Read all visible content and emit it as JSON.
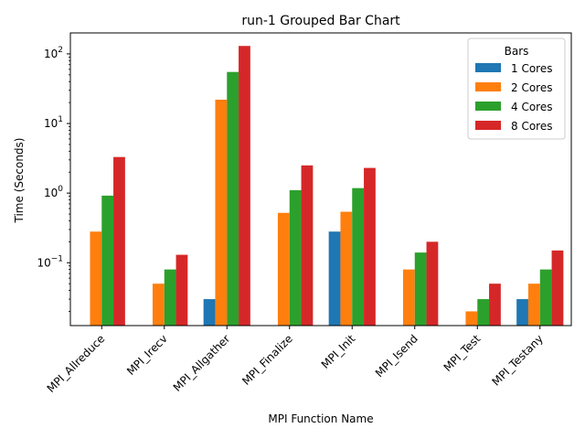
{
  "chart_data": {
    "type": "bar",
    "title": "run-1 Grouped Bar Chart",
    "xlabel": "MPI Function Name",
    "ylabel": "Time (Seconds)",
    "yscale": "log",
    "ylim": [
      0.0125,
      200
    ],
    "y_ticks": [
      {
        "value": 0.1,
        "base": "10",
        "exp": "−1"
      },
      {
        "value": 1,
        "base": "10",
        "exp": "0"
      },
      {
        "value": 10,
        "base": "10",
        "exp": "1"
      },
      {
        "value": 100,
        "base": "10",
        "exp": "2"
      }
    ],
    "categories": [
      "MPI_Allreduce",
      "MPI_Irecv",
      "MPI_Allgather",
      "MPI_Finalize",
      "MPI_Init",
      "MPI_Isend",
      "MPI_Test",
      "MPI_Testany"
    ],
    "series": [
      {
        "name": "1 Cores",
        "color": "#1f77b4",
        "values": [
          null,
          null,
          0.03,
          null,
          0.28,
          null,
          null,
          0.03
        ]
      },
      {
        "name": "2 Cores",
        "color": "#ff7f0e",
        "values": [
          0.28,
          0.05,
          22,
          0.52,
          0.54,
          0.08,
          0.02,
          0.05
        ]
      },
      {
        "name": "4 Cores",
        "color": "#2ca02c",
        "values": [
          0.92,
          0.08,
          55,
          1.1,
          1.18,
          0.14,
          0.03,
          0.08
        ]
      },
      {
        "name": "8 Cores",
        "color": "#d62728",
        "values": [
          3.3,
          0.13,
          130,
          2.5,
          2.3,
          0.2,
          0.05,
          0.15
        ]
      }
    ],
    "legend": {
      "title": "Bars",
      "position": "top-right"
    },
    "grid": false
  }
}
